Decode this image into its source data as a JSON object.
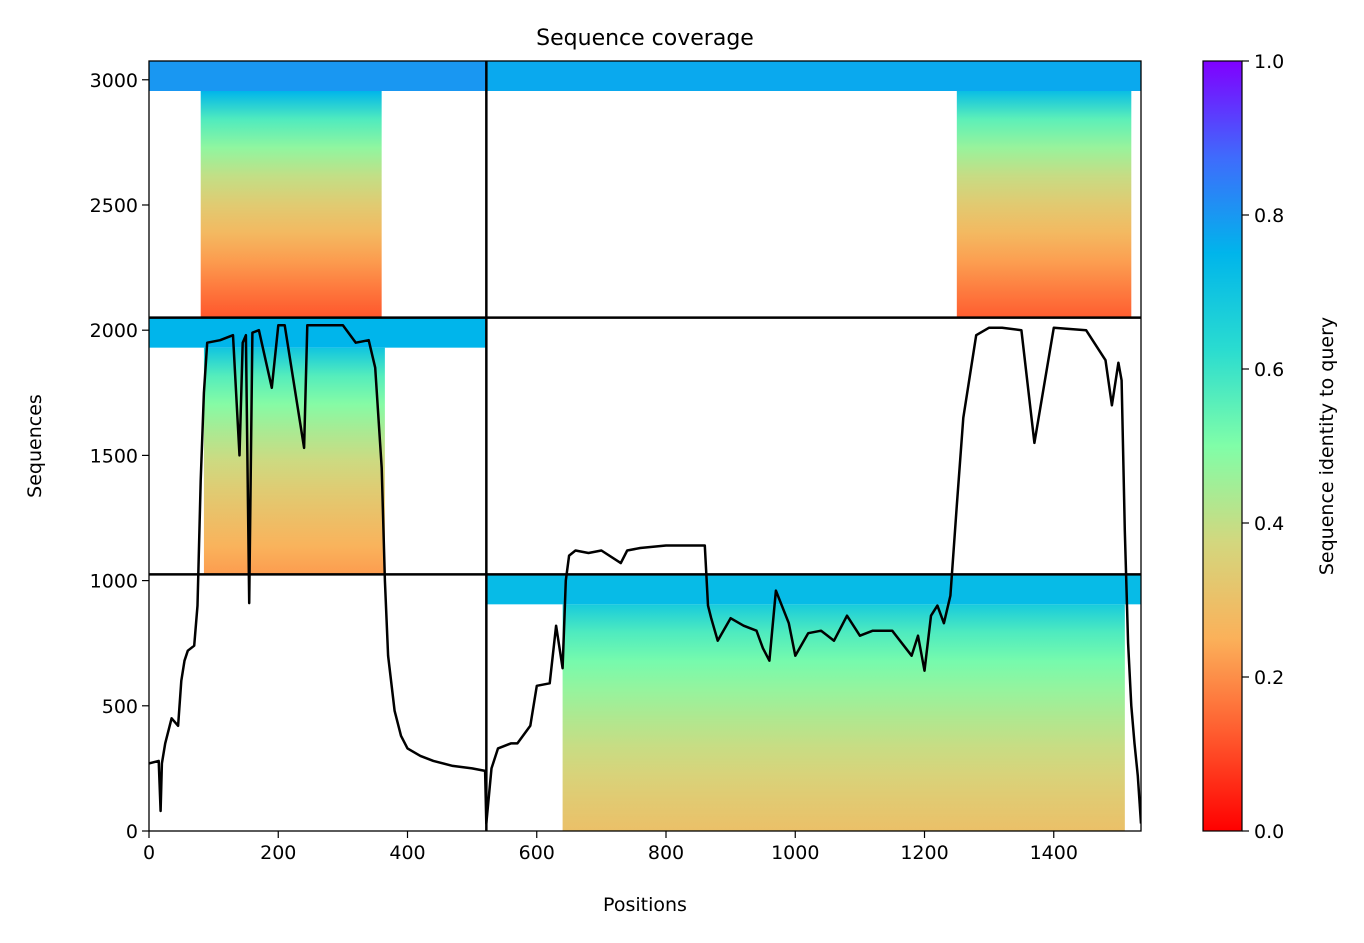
{
  "chart_data": {
    "type": "heatmap",
    "title": "Sequence coverage",
    "xlabel": "Positions",
    "ylabel": "Sequences",
    "xlim": [
      0,
      1535
    ],
    "ylim": [
      0,
      3075
    ],
    "xticks": [
      0,
      200,
      400,
      600,
      800,
      1000,
      1200,
      1400
    ],
    "yticks": [
      0,
      500,
      1000,
      1500,
      2000,
      2500,
      3000
    ],
    "chain_boundaries_x": [
      522
    ],
    "block_boundaries_y": [
      1025,
      2050
    ],
    "blocks": [
      {
        "x_range": [
          0,
          522
        ],
        "y_range": [
          1025,
          2050
        ],
        "identity_top": 0.7,
        "identity_bottom": 0.22,
        "coverage_x": [
          85,
          365
        ]
      },
      {
        "x_range": [
          0,
          522
        ],
        "y_range": [
          2050,
          3075
        ],
        "identity_top": 0.75,
        "identity_bottom": 0.12,
        "coverage_x": [
          80,
          360
        ]
      },
      {
        "x_range": [
          522,
          1535
        ],
        "y_range": [
          0,
          1025
        ],
        "identity_top": 0.68,
        "identity_bottom": 0.3,
        "coverage_x": [
          640,
          1510
        ]
      },
      {
        "x_range": [
          522,
          1535
        ],
        "y_range": [
          2050,
          3075
        ],
        "identity_top": 0.72,
        "identity_bottom": 0.13,
        "coverage_x": [
          1250,
          1520
        ]
      }
    ],
    "coverage_line": {
      "x": [
        0,
        15,
        18,
        20,
        25,
        35,
        45,
        50,
        55,
        60,
        70,
        75,
        80,
        85,
        90,
        110,
        130,
        140,
        145,
        150,
        155,
        160,
        170,
        190,
        200,
        210,
        240,
        245,
        260,
        300,
        320,
        340,
        350,
        360,
        365,
        370,
        380,
        390,
        400,
        420,
        440,
        470,
        500,
        520,
        522,
        530,
        540,
        560,
        570,
        590,
        600,
        620,
        630,
        640,
        645,
        650,
        660,
        680,
        700,
        730,
        740,
        760,
        800,
        840,
        860,
        865,
        870,
        880,
        900,
        920,
        940,
        950,
        960,
        970,
        990,
        1000,
        1020,
        1040,
        1060,
        1080,
        1100,
        1120,
        1150,
        1180,
        1190,
        1200,
        1210,
        1220,
        1230,
        1240,
        1250,
        1260,
        1280,
        1300,
        1320,
        1350,
        1370,
        1400,
        1450,
        1480,
        1490,
        1500,
        1505,
        1510,
        1515,
        1520,
        1525,
        1530,
        1535
      ],
      "y": [
        270,
        280,
        80,
        270,
        350,
        450,
        420,
        600,
        680,
        720,
        740,
        900,
        1400,
        1750,
        1950,
        1960,
        1980,
        1500,
        1950,
        1980,
        910,
        1990,
        2000,
        1770,
        2020,
        2020,
        1530,
        2020,
        2020,
        2020,
        1950,
        1960,
        1850,
        1450,
        1000,
        700,
        480,
        380,
        330,
        300,
        280,
        260,
        250,
        240,
        30,
        250,
        330,
        350,
        350,
        420,
        580,
        590,
        820,
        650,
        1000,
        1100,
        1120,
        1110,
        1120,
        1070,
        1120,
        1130,
        1140,
        1140,
        1140,
        900,
        850,
        760,
        850,
        820,
        800,
        730,
        680,
        960,
        830,
        700,
        790,
        800,
        760,
        860,
        780,
        800,
        800,
        700,
        780,
        640,
        860,
        900,
        830,
        940,
        1300,
        1650,
        1980,
        2010,
        2010,
        2000,
        1550,
        2010,
        2000,
        1880,
        1700,
        1870,
        1800,
        1200,
        750,
        500,
        350,
        220,
        30
      ]
    },
    "colorbar": {
      "label": "Sequence identity to query",
      "colormap": "rainbow_r",
      "range": [
        0.0,
        1.0
      ],
      "ticks": [
        "0.0",
        "0.2",
        "0.4",
        "0.6",
        "0.8",
        "1.0"
      ]
    }
  }
}
